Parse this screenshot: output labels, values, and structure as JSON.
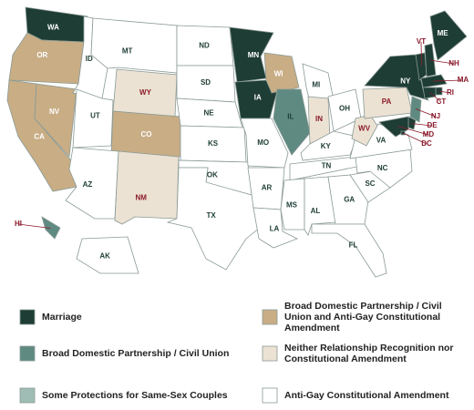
{
  "legend": [
    {
      "label": "Marriage",
      "color": "#1e3d35"
    },
    {
      "label": "Broad Domestic Partnership / Civil Union",
      "color": "#5f8a81"
    },
    {
      "label": "Some Protections for Same-Sex Couples",
      "color": "#9fbdb4"
    },
    {
      "label": "Broad Domestic Partnership / Civil Union and Anti-Gay Constitutional Amendment",
      "color": "#c8ad85"
    },
    {
      "label": "Neither Relationship Recognition nor Constitutional Amendment",
      "color": "#ebe2d3"
    },
    {
      "label": "Anti-Gay Constitutional Amendment",
      "color": "#ffffff"
    }
  ],
  "states": [
    {
      "label": "WA",
      "category": 0
    },
    {
      "label": "OR",
      "category": 3
    },
    {
      "label": "CA",
      "category": 3
    },
    {
      "label": "NV",
      "category": 3
    },
    {
      "label": "ID",
      "category": 5
    },
    {
      "label": "MT",
      "category": 5
    },
    {
      "label": "WY",
      "category": 4
    },
    {
      "label": "UT",
      "category": 5
    },
    {
      "label": "CO",
      "category": 3
    },
    {
      "label": "AZ",
      "category": 5
    },
    {
      "label": "NM",
      "category": 4
    },
    {
      "label": "ND",
      "category": 5
    },
    {
      "label": "SD",
      "category": 5
    },
    {
      "label": "NE",
      "category": 5
    },
    {
      "label": "KS",
      "category": 5
    },
    {
      "label": "OK",
      "category": 5
    },
    {
      "label": "TX",
      "category": 5
    },
    {
      "label": "MN",
      "category": 0
    },
    {
      "label": "IA",
      "category": 0
    },
    {
      "label": "MO",
      "category": 5
    },
    {
      "label": "AR",
      "category": 5
    },
    {
      "label": "LA",
      "category": 5
    },
    {
      "label": "WI",
      "category": 3
    },
    {
      "label": "IL",
      "category": 1
    },
    {
      "label": "MI",
      "category": 5
    },
    {
      "label": "IN",
      "category": 4
    },
    {
      "label": "OH",
      "category": 5
    },
    {
      "label": "KY",
      "category": 5
    },
    {
      "label": "TN",
      "category": 5
    },
    {
      "label": "MS",
      "category": 5
    },
    {
      "label": "AL",
      "category": 5
    },
    {
      "label": "GA",
      "category": 5
    },
    {
      "label": "FL",
      "category": 5
    },
    {
      "label": "SC",
      "category": 5
    },
    {
      "label": "NC",
      "category": 5
    },
    {
      "label": "VA",
      "category": 5
    },
    {
      "label": "WV",
      "category": 4
    },
    {
      "label": "PA",
      "category": 4
    },
    {
      "label": "NY",
      "category": 0
    },
    {
      "label": "VT",
      "category": 0
    },
    {
      "label": "NH",
      "category": 0
    },
    {
      "label": "ME",
      "category": 0
    },
    {
      "label": "MA",
      "category": 0
    },
    {
      "label": "RI",
      "category": 0
    },
    {
      "label": "CT",
      "category": 0
    },
    {
      "label": "NJ",
      "category": 1
    },
    {
      "label": "DE",
      "category": 0
    },
    {
      "label": "MD",
      "category": 0
    },
    {
      "label": "DC",
      "category": 0
    },
    {
      "label": "AK",
      "category": 5
    },
    {
      "label": "HI",
      "category": 1
    }
  ]
}
